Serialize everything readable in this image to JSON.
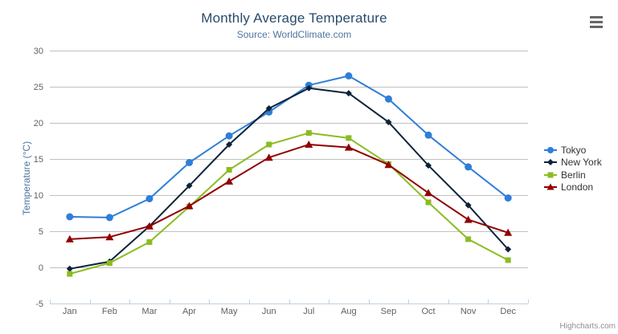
{
  "chart": {
    "title": "Monthly Average Temperature",
    "subtitle": "Source: WorldClimate.com",
    "credits": "Highcharts.com"
  },
  "chart_data": {
    "type": "line",
    "title": "Monthly Average Temperature",
    "subtitle": "Source: WorldClimate.com",
    "categories": [
      "Jan",
      "Feb",
      "Mar",
      "Apr",
      "May",
      "Jun",
      "Jul",
      "Aug",
      "Sep",
      "Oct",
      "Nov",
      "Dec"
    ],
    "series": [
      {
        "name": "Tokyo",
        "color": "#2f7ed8",
        "marker": "circle",
        "values": [
          7.0,
          6.9,
          9.5,
          14.5,
          18.2,
          21.5,
          25.2,
          26.5,
          23.3,
          18.3,
          13.9,
          9.6
        ]
      },
      {
        "name": "New York",
        "color": "#0d233a",
        "marker": "diamond",
        "values": [
          -0.2,
          0.8,
          5.7,
          11.3,
          17.0,
          22.0,
          24.8,
          24.1,
          20.1,
          14.1,
          8.6,
          2.5
        ]
      },
      {
        "name": "Berlin",
        "color": "#8bbc21",
        "marker": "square",
        "values": [
          -0.9,
          0.6,
          3.5,
          8.4,
          13.5,
          17.0,
          18.6,
          17.9,
          14.3,
          9.0,
          3.9,
          1.0
        ]
      },
      {
        "name": "London",
        "color": "#910000",
        "marker": "triangle",
        "values": [
          3.9,
          4.2,
          5.7,
          8.5,
          11.9,
          15.2,
          17.0,
          16.6,
          14.2,
          10.3,
          6.6,
          4.8
        ]
      }
    ],
    "xlabel": "",
    "ylabel": "Temperature (°C)",
    "ylim": [
      -5,
      30
    ],
    "yticks": [
      -5,
      0,
      5,
      10,
      15,
      20,
      25,
      30
    ],
    "grid": true,
    "legend_position": "right"
  },
  "colors": {
    "title": "#274b6d",
    "subtitle": "#4d759e",
    "axis_title": "#4d759e",
    "tick_label": "#606060",
    "gridline": "#c0c0c0",
    "axis_line": "#c0d0e0",
    "legend_text": "#333333",
    "credits": "#909090",
    "export_icon": "#666666",
    "background": "#ffffff"
  }
}
